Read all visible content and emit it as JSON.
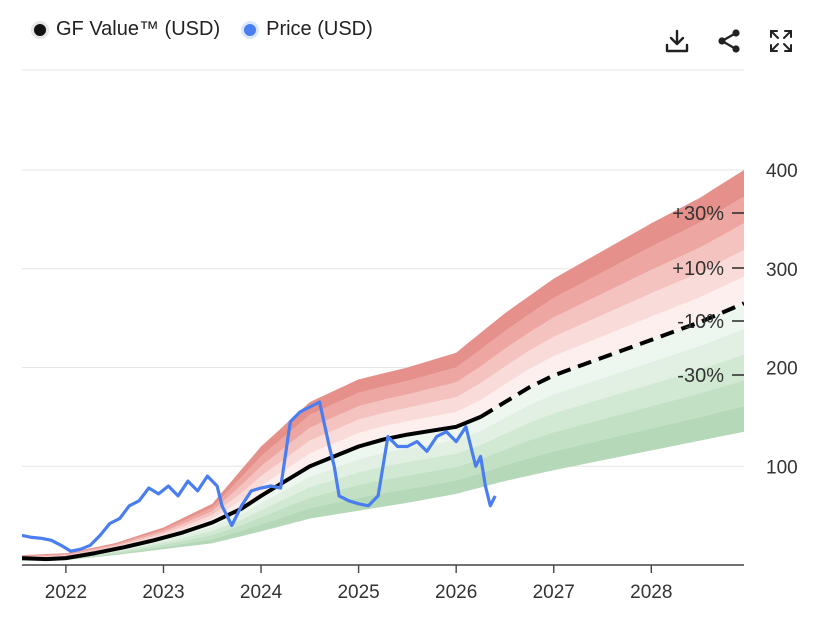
{
  "legend": {
    "gf_value_label": "GF Value™ (USD)",
    "price_label": "Price (USD)"
  },
  "toolbar": {
    "download_icon": "download-icon",
    "share_icon": "share-icon",
    "fullscreen_icon": "expand-icon"
  },
  "colors": {
    "gf_value": "#000000",
    "price": "#4a7ef0",
    "band_upper": "#e07d78",
    "band_lower": "#7fbf86"
  },
  "chart_data": {
    "type": "line",
    "xlabel": "",
    "ylabel": "",
    "x_ticks": [
      "2022",
      "2023",
      "2024",
      "2025",
      "2026",
      "2027",
      "2028"
    ],
    "y_ticks": [
      100,
      200,
      300,
      400
    ],
    "xlim": [
      2021.55,
      2028.95
    ],
    "ylim": [
      0,
      400
    ],
    "grid": true,
    "band_labels": [
      "+30%",
      "+10%",
      "-10%",
      "-30%"
    ],
    "series": [
      {
        "name": "GF Value™ (USD)",
        "style": "solid-then-dashed",
        "forecast_start": 2026.25,
        "x": [
          2021.55,
          2021.8,
          2022.0,
          2022.3,
          2022.6,
          2022.9,
          2023.2,
          2023.5,
          2023.8,
          2024.0,
          2024.25,
          2024.5,
          2024.75,
          2025.0,
          2025.25,
          2025.5,
          2025.75,
          2026.0,
          2026.25,
          2026.5,
          2026.75,
          2027.0,
          2027.5,
          2028.0,
          2028.5,
          2028.95
        ],
        "values": [
          7,
          6,
          7,
          12,
          18,
          25,
          33,
          43,
          57,
          70,
          85,
          100,
          110,
          120,
          127,
          132,
          136,
          140,
          150,
          165,
          180,
          192,
          210,
          228,
          246,
          265
        ]
      },
      {
        "name": "Price (USD)",
        "style": "solid",
        "x": [
          2021.55,
          2021.65,
          2021.75,
          2021.85,
          2021.95,
          2022.05,
          2022.15,
          2022.25,
          2022.35,
          2022.45,
          2022.55,
          2022.65,
          2022.75,
          2022.85,
          2022.95,
          2023.05,
          2023.15,
          2023.25,
          2023.35,
          2023.45,
          2023.55,
          2023.6,
          2023.7,
          2023.8,
          2023.9,
          2024.0,
          2024.1,
          2024.2,
          2024.3,
          2024.4,
          2024.5,
          2024.6,
          2024.7,
          2024.75,
          2024.8,
          2024.9,
          2025.0,
          2025.1,
          2025.2,
          2025.3,
          2025.4,
          2025.5,
          2025.6,
          2025.7,
          2025.8,
          2025.9,
          2026.0,
          2026.1,
          2026.15,
          2026.2,
          2026.25,
          2026.3,
          2026.35,
          2026.4
        ],
        "values": [
          30,
          28,
          27,
          25,
          20,
          14,
          16,
          20,
          30,
          42,
          47,
          60,
          65,
          78,
          72,
          80,
          70,
          85,
          75,
          90,
          80,
          60,
          40,
          60,
          75,
          78,
          80,
          78,
          145,
          155,
          160,
          165,
          120,
          100,
          70,
          65,
          62,
          60,
          70,
          130,
          120,
          120,
          125,
          115,
          130,
          135,
          125,
          140,
          120,
          100,
          110,
          80,
          60,
          70
        ]
      }
    ],
    "bands": {
      "x": [
        2021.55,
        2022.0,
        2022.5,
        2023.0,
        2023.5,
        2024.0,
        2024.5,
        2025.0,
        2025.5,
        2026.0,
        2026.5,
        2027.0,
        2027.5,
        2028.0,
        2028.5,
        2028.95
      ],
      "upper_max": [
        10,
        12,
        22,
        38,
        62,
        120,
        165,
        188,
        200,
        215,
        255,
        290,
        318,
        346,
        372,
        400
      ],
      "lower_min": [
        4,
        5,
        10,
        16,
        22,
        34,
        47,
        55,
        63,
        72,
        85,
        96,
        106,
        116,
        126,
        135
      ]
    }
  }
}
